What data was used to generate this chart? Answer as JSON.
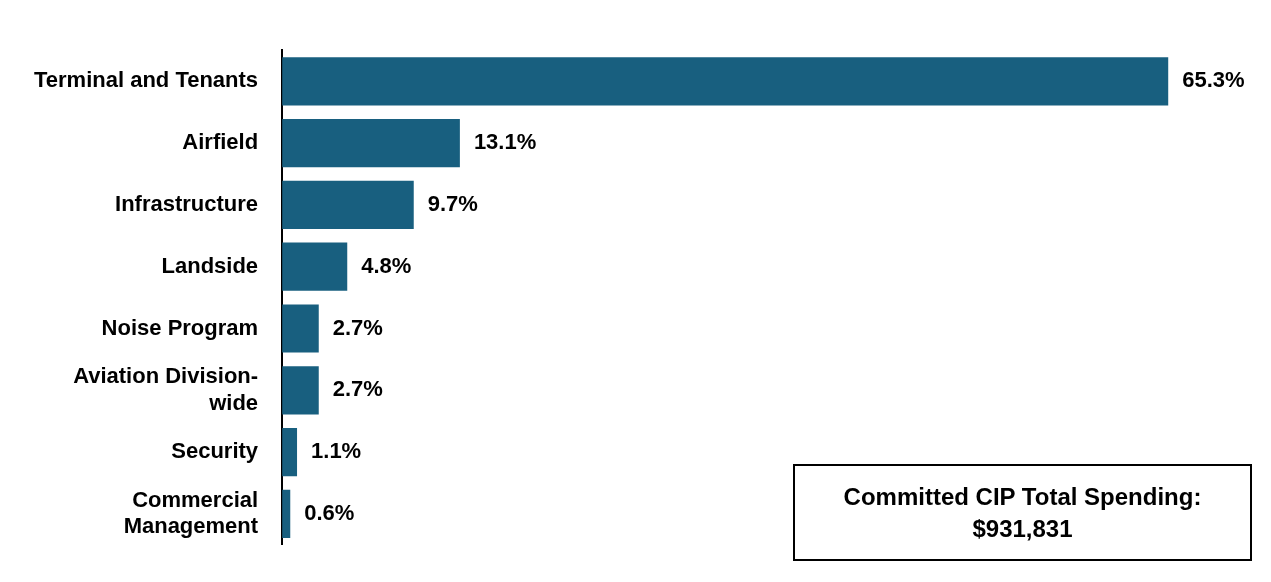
{
  "chart_data": {
    "type": "bar",
    "orientation": "horizontal",
    "categories": [
      "Terminal and Tenants",
      "Airfield",
      "Infrastructure",
      "Landside",
      "Noise Program",
      "Aviation Division-wide",
      "Security",
      "Commercial Management"
    ],
    "values": [
      65.3,
      13.1,
      9.7,
      4.8,
      2.7,
      2.7,
      1.1,
      0.6
    ],
    "value_labels": [
      "65.3%",
      "13.1%",
      "9.7%",
      "4.8%",
      "2.7%",
      "2.7%",
      "1.1%",
      "0.6%"
    ],
    "color": "#185f7f",
    "annotations": [
      "Committed CIP Total Spending: $931,831"
    ]
  }
}
